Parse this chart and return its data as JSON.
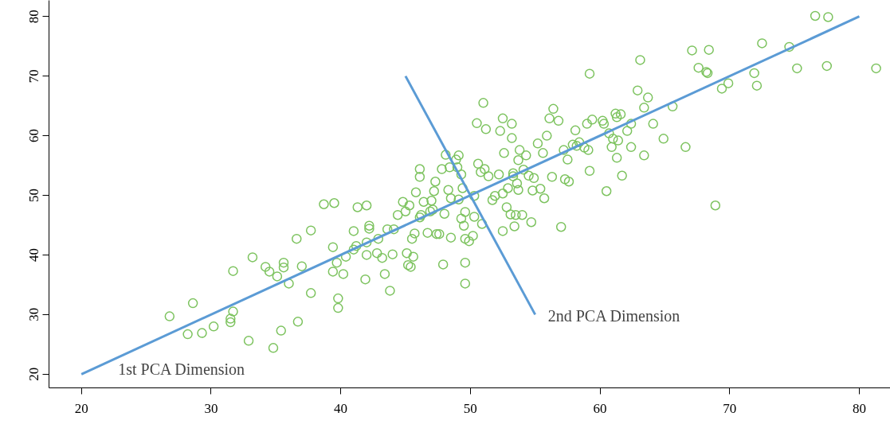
{
  "chart_data": {
    "type": "scatter",
    "xlim": [
      17.5,
      82.4
    ],
    "ylim": [
      17.7,
      82.7
    ],
    "xticks": [
      20,
      30,
      40,
      50,
      60,
      70,
      80
    ],
    "yticks": [
      20,
      30,
      40,
      50,
      60,
      70,
      80
    ],
    "grid": false,
    "series": [
      {
        "color": "#7dc35f",
        "marker": "circle",
        "x": [
          26.8,
          28.6,
          28.2,
          29.3,
          30.2,
          31.5,
          31.7,
          31.7,
          31.5,
          32.9,
          33.2,
          34.2,
          34.5,
          34.8,
          35.1,
          35.4,
          35.6,
          35.6,
          36.0,
          36.6,
          36.7,
          37.0,
          37.7,
          37.7,
          38.7,
          39.4,
          39.4,
          39.5,
          39.7,
          39.8,
          39.8,
          40.2,
          40.4,
          41.0,
          41.0,
          41.2,
          41.3,
          41.9,
          42.0,
          42.0,
          42.0,
          42.2,
          42.2,
          42.8,
          42.9,
          43.2,
          43.4,
          43.6,
          43.8,
          44.0,
          44.1,
          44.4,
          44.8,
          45.0,
          45.1,
          45.2,
          45.4,
          45.5,
          45.6,
          45.7,
          45.8,
          45.3,
          46.1,
          46.1,
          46.1,
          46.2,
          46.4,
          46.7,
          46.9,
          47.0,
          47.1,
          47.2,
          47.3,
          47.4,
          47.6,
          47.8,
          47.9,
          48.0,
          48.1,
          48.3,
          48.4,
          48.5,
          48.5,
          48.9,
          49.0,
          49.1,
          49.1,
          49.3,
          49.3,
          49.4,
          49.5,
          49.6,
          49.6,
          49.6,
          49.6,
          49.9,
          50.2,
          50.3,
          50.3,
          50.5,
          50.6,
          50.8,
          50.9,
          51.0,
          51.1,
          51.2,
          51.4,
          51.7,
          51.9,
          52.2,
          52.3,
          52.5,
          52.5,
          52.6,
          52.8,
          52.5,
          52.9,
          53.1,
          53.2,
          53.2,
          53.3,
          53.3,
          53.4,
          53.5,
          53.6,
          53.7,
          53.7,
          53.8,
          54.0,
          54.1,
          54.3,
          54.5,
          54.7,
          54.8,
          54.9,
          55.2,
          55.4,
          55.6,
          55.7,
          55.9,
          56.1,
          56.3,
          56.4,
          56.8,
          57.0,
          57.2,
          57.3,
          57.5,
          57.6,
          57.9,
          58.1,
          58.2,
          58.4,
          58.8,
          59.0,
          59.1,
          59.2,
          59.4,
          59.2,
          60.2,
          60.3,
          60.5,
          60.7,
          60.9,
          61.0,
          61.2,
          61.3,
          61.3,
          61.4,
          61.7,
          61.6,
          62.1,
          62.4,
          62.4,
          63.1,
          62.9,
          63.4,
          63.4,
          63.7,
          64.1,
          64.9,
          65.6,
          66.6,
          67.1,
          67.6,
          68.2,
          68.4,
          68.9,
          69.4,
          69.9,
          71.9,
          72.1,
          72.5,
          74.6,
          75.2,
          76.6,
          77.6,
          77.5,
          81.3,
          68.3
        ],
        "values": [
          29.7,
          31.9,
          26.7,
          26.9,
          28.0,
          29.3,
          30.5,
          37.3,
          28.7,
          25.6,
          39.6,
          38.0,
          37.2,
          24.4,
          36.4,
          27.3,
          37.9,
          38.7,
          35.2,
          42.7,
          28.8,
          38.1,
          44.1,
          33.6,
          48.5,
          37.2,
          41.3,
          48.7,
          38.7,
          32.7,
          31.1,
          36.8,
          39.7,
          44.0,
          40.9,
          41.5,
          48.0,
          35.9,
          48.3,
          42.1,
          40.0,
          44.4,
          44.9,
          40.3,
          42.7,
          39.5,
          36.8,
          44.3,
          34.0,
          40.1,
          44.3,
          46.7,
          48.9,
          47.3,
          40.3,
          38.3,
          38.0,
          42.7,
          39.7,
          43.6,
          50.5,
          48.3,
          54.4,
          53.1,
          46.3,
          46.7,
          48.9,
          43.7,
          47.3,
          49.1,
          47.6,
          50.7,
          52.3,
          43.5,
          43.5,
          54.4,
          38.4,
          46.9,
          56.8,
          50.9,
          54.7,
          49.5,
          42.9,
          56.0,
          54.7,
          56.7,
          49.3,
          53.5,
          46.1,
          51.2,
          44.9,
          47.2,
          42.7,
          38.7,
          35.2,
          42.3,
          43.2,
          46.4,
          49.9,
          62.1,
          55.3,
          53.9,
          45.2,
          65.5,
          54.4,
          61.1,
          53.2,
          49.2,
          49.9,
          53.5,
          60.8,
          62.9,
          50.3,
          57.1,
          48.0,
          44.0,
          51.2,
          46.8,
          62.0,
          59.6,
          53.7,
          53.2,
          44.8,
          46.7,
          52.0,
          55.9,
          50.9,
          57.6,
          46.7,
          54.3,
          56.7,
          53.3,
          45.5,
          50.8,
          52.9,
          58.7,
          51.1,
          57.1,
          49.5,
          60.0,
          62.9,
          53.1,
          64.5,
          62.5,
          44.7,
          57.6,
          52.7,
          56.0,
          52.3,
          58.5,
          60.9,
          58.3,
          58.9,
          58.0,
          62.0,
          57.6,
          70.4,
          62.7,
          54.1,
          62.5,
          62.0,
          50.7,
          60.4,
          58.1,
          59.5,
          63.7,
          63.1,
          56.3,
          59.2,
          53.3,
          63.6,
          60.8,
          62.0,
          58.1,
          72.7,
          67.6,
          64.7,
          56.7,
          66.4,
          62.0,
          59.5,
          64.9,
          58.1,
          74.3,
          71.4,
          70.7,
          74.4,
          48.3,
          67.9,
          68.8,
          70.5,
          68.4,
          75.5,
          74.9,
          71.3,
          80.1,
          79.9,
          71.7,
          71.3,
          70.5
        ]
      },
      {
        "type": "line",
        "name": "1st PCA Dimension",
        "color": "#5b9bd5",
        "marker": "none",
        "x": [
          20,
          80
        ],
        "values": [
          20,
          80
        ]
      },
      {
        "type": "line",
        "name": "2nd PCA Dimension",
        "color": "#5b9bd5",
        "marker": "none",
        "x": [
          45,
          55
        ],
        "values": [
          70,
          30
        ]
      }
    ]
  }
}
